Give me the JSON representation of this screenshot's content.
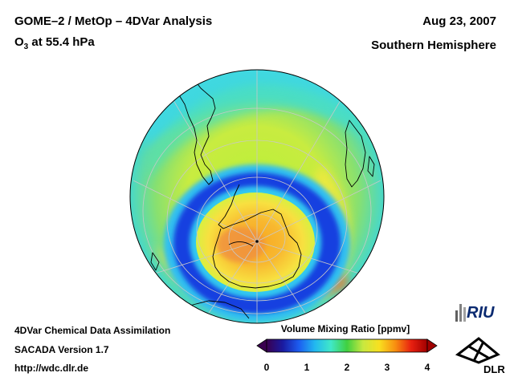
{
  "header": {
    "title": "GOME–2 / MetOp – 4DVar Analysis",
    "subtitle_base": "O",
    "subtitle_sub": "3",
    "subtitle_rest": " at 55.4 hPa",
    "date": "Aug 23, 2007",
    "region": "Southern Hemisphere"
  },
  "footer": {
    "line1": "4DVar Chemical Data Assimilation",
    "line2": "SACADA Version 1.7",
    "line3": "http://wdc.dlr.de"
  },
  "colorbar": {
    "title": "Volume Mixing Ratio [ppmv]",
    "ticks": [
      "0",
      "1",
      "2",
      "3",
      "4"
    ],
    "tick_values": [
      0,
      1,
      2,
      3,
      4
    ],
    "range": [
      0,
      4
    ],
    "colors": [
      "#3a0050",
      "#1a1aa0",
      "#1c5cf0",
      "#22b8f0",
      "#40e8c8",
      "#40d040",
      "#c8e840",
      "#f8e020",
      "#f89010",
      "#e82010",
      "#a00000"
    ]
  },
  "logos": {
    "riu": "RIU",
    "dlr": "DLR"
  },
  "map": {
    "projection": "orthographic",
    "pole": "South Pole",
    "background_value_ppmv": 1.8,
    "ozone_hole_ring_value_ppmv": 0.3,
    "polar_core_value_ppmv": 2.7,
    "colors": {
      "land_outline": "#000000",
      "graticule": "#c8c8c8"
    }
  }
}
